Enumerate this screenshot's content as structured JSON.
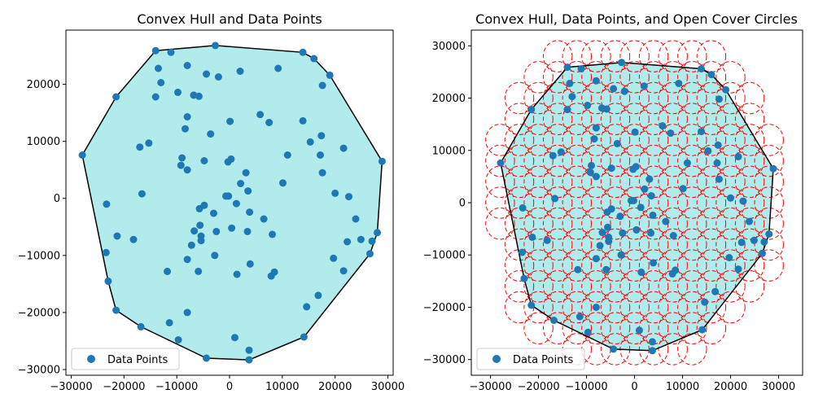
{
  "chart_data": [
    {
      "type": "scatter",
      "title": "Convex Hull and Data Points",
      "xlim": [
        -31000,
        31000
      ],
      "ylim": [
        -31000,
        29500
      ],
      "xticks": [
        -30000,
        -20000,
        -10000,
        0,
        10000,
        20000,
        30000
      ],
      "yticks": [
        -30000,
        -20000,
        -10000,
        0,
        10000,
        20000
      ],
      "xtick_labels": [
        "−30000",
        "−20000",
        "−10000",
        "0",
        "10000",
        "20000",
        "30000"
      ],
      "ytick_labels": [
        "−30000",
        "−20000",
        "−10000",
        "0",
        "10000",
        "20000"
      ],
      "legend": {
        "label": "Data Points",
        "loc": "lower-left"
      },
      "show_cover_circles": false
    },
    {
      "type": "scatter",
      "title": "Convex Hull, Data Points, and Open Cover Circles",
      "xlim": [
        -34000,
        35000
      ],
      "ylim": [
        -33000,
        33000
      ],
      "xticks": [
        -30000,
        -20000,
        -10000,
        0,
        10000,
        20000,
        30000
      ],
      "yticks": [
        -30000,
        -20000,
        -10000,
        0,
        10000,
        20000,
        30000
      ],
      "xtick_labels": [
        "−30000",
        "−20000",
        "−10000",
        "0",
        "10000",
        "20000",
        "30000"
      ],
      "ytick_labels": [
        "−30000",
        "−20000",
        "−10000",
        "0",
        "10000",
        "20000",
        "30000"
      ],
      "legend": {
        "label": "Data Points",
        "loc": "lower-left"
      },
      "show_cover_circles": true,
      "circle_radius": 3000,
      "circle_spacing": 4000
    }
  ],
  "shared": {
    "points": [
      [
        -27900,
        7600
      ],
      [
        -23300,
        -1000
      ],
      [
        -23400,
        -9500
      ],
      [
        -23000,
        -14500
      ],
      [
        -21500,
        17800
      ],
      [
        -21300,
        -6600
      ],
      [
        -21500,
        -19600
      ],
      [
        -18200,
        -7200
      ],
      [
        -17000,
        9000
      ],
      [
        -16600,
        800
      ],
      [
        -16800,
        -22500
      ],
      [
        -15300,
        9700
      ],
      [
        -14000,
        25900
      ],
      [
        -14000,
        17800
      ],
      [
        -13500,
        22800
      ],
      [
        -13000,
        20300
      ],
      [
        -11800,
        -12800
      ],
      [
        -11400,
        -21800
      ],
      [
        -11100,
        25600
      ],
      [
        -9800,
        18600
      ],
      [
        -9700,
        -24800
      ],
      [
        -9200,
        5800
      ],
      [
        -9000,
        7100
      ],
      [
        -8400,
        12200
      ],
      [
        -8000,
        23300
      ],
      [
        -8000,
        14300
      ],
      [
        -8000,
        5000
      ],
      [
        -8000,
        -10700
      ],
      [
        -8000,
        -20000
      ],
      [
        -7200,
        -8200
      ],
      [
        -6800,
        18100
      ],
      [
        -6700,
        -5700
      ],
      [
        -5900,
        -12800
      ],
      [
        -5800,
        17900
      ],
      [
        -5700,
        -1800
      ],
      [
        -5600,
        -4700
      ],
      [
        -5400,
        -6600
      ],
      [
        -5400,
        -7400
      ],
      [
        -4800,
        6600
      ],
      [
        -4800,
        -1200
      ],
      [
        -4400,
        21800
      ],
      [
        -4400,
        -28000
      ],
      [
        -3600,
        11300
      ],
      [
        -3000,
        -2600
      ],
      [
        -2800,
        -10000
      ],
      [
        -2500,
        -5800
      ],
      [
        -2100,
        21300
      ],
      [
        -2700,
        26800
      ],
      [
        -700,
        400
      ],
      [
        -200,
        400
      ],
      [
        -300,
        6400
      ],
      [
        100,
        13500
      ],
      [
        300,
        6900
      ],
      [
        400,
        -5200
      ],
      [
        1000,
        -24400
      ],
      [
        1300,
        -900
      ],
      [
        1400,
        -13300
      ],
      [
        2000,
        22300
      ],
      [
        2100,
        2600
      ],
      [
        3100,
        4500
      ],
      [
        3400,
        -5800
      ],
      [
        3700,
        -26600
      ],
      [
        3700,
        -28300
      ],
      [
        3500,
        1300
      ],
      [
        3800,
        -2400
      ],
      [
        3900,
        -11500
      ],
      [
        5800,
        14700
      ],
      [
        6500,
        -3600
      ],
      [
        7500,
        13300
      ],
      [
        7900,
        -13600
      ],
      [
        8100,
        -6300
      ],
      [
        8500,
        -12900
      ],
      [
        9200,
        22800
      ],
      [
        10100,
        2700
      ],
      [
        11000,
        7600
      ],
      [
        13900,
        13600
      ],
      [
        13900,
        25600
      ],
      [
        14100,
        -24300
      ],
      [
        14600,
        -19000
      ],
      [
        15300,
        9900
      ],
      [
        16000,
        24500
      ],
      [
        16800,
        -17000
      ],
      [
        17200,
        7600
      ],
      [
        17400,
        11000
      ],
      [
        17600,
        19800
      ],
      [
        17600,
        4500
      ],
      [
        19000,
        21600
      ],
      [
        19700,
        -10500
      ],
      [
        20000,
        900
      ],
      [
        21600,
        -12700
      ],
      [
        21600,
        8800
      ],
      [
        22300,
        -7600
      ],
      [
        22600,
        300
      ],
      [
        23900,
        -3600
      ],
      [
        24900,
        -7200
      ],
      [
        26600,
        -9700
      ],
      [
        27000,
        -7500
      ],
      [
        28000,
        -6000
      ],
      [
        28900,
        6500
      ]
    ],
    "hull": [
      [
        -27900,
        7600
      ],
      [
        -21500,
        17800
      ],
      [
        -14000,
        25900
      ],
      [
        -2700,
        26800
      ],
      [
        13900,
        25600
      ],
      [
        16000,
        24500
      ],
      [
        19000,
        21600
      ],
      [
        28900,
        6500
      ],
      [
        28000,
        -6000
      ],
      [
        26600,
        -9700
      ],
      [
        14100,
        -24300
      ],
      [
        3700,
        -28300
      ],
      [
        -4400,
        -28000
      ],
      [
        -16800,
        -22500
      ],
      [
        -21500,
        -19600
      ],
      [
        -23000,
        -14500
      ],
      [
        -27900,
        7600
      ]
    ],
    "colors": {
      "point": "#1f77b4",
      "hull_fill": "#b2ebeb",
      "hull_edge": "#000000",
      "circle": "#ff0000"
    }
  }
}
